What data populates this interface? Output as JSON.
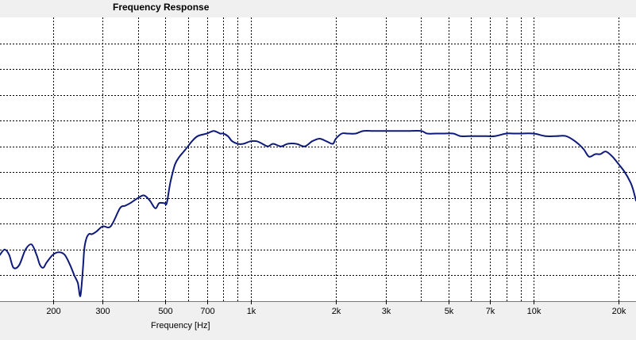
{
  "chart_data": {
    "type": "line",
    "title": "Frequency Response",
    "xlabel": "Frequency [Hz]",
    "ylabel": "",
    "x_scale": "log",
    "xlim": [
      130,
      23000
    ],
    "ylim": [
      0,
      11
    ],
    "grid": true,
    "legend": "none",
    "x_ticks": [
      {
        "value": 200,
        "label": "200"
      },
      {
        "value": 300,
        "label": "300"
      },
      {
        "value": 500,
        "label": "500"
      },
      {
        "value": 700,
        "label": "700"
      },
      {
        "value": 1000,
        "label": "1k"
      },
      {
        "value": 2000,
        "label": "2k"
      },
      {
        "value": 3000,
        "label": "3k"
      },
      {
        "value": 5000,
        "label": "5k"
      },
      {
        "value": 7000,
        "label": "7k"
      },
      {
        "value": 10000,
        "label": "10k"
      },
      {
        "value": 20000,
        "label": "20k"
      }
    ],
    "x_gridlines": [
      200,
      300,
      400,
      500,
      600,
      700,
      800,
      900,
      1000,
      2000,
      3000,
      4000,
      5000,
      6000,
      7000,
      8000,
      9000,
      10000,
      20000
    ],
    "y_gridlines": [
      1,
      2,
      3,
      4,
      5,
      6,
      7,
      8,
      9,
      10
    ],
    "series": [
      {
        "color": "#0d1a7a",
        "x": [
          130,
          135,
          140,
          145,
          152,
          160,
          168,
          175,
          180,
          185,
          190,
          200,
          210,
          220,
          230,
          238,
          245,
          250,
          255,
          258,
          262,
          268,
          275,
          285,
          300,
          320,
          345,
          360,
          375,
          400,
          420,
          440,
          460,
          475,
          495,
          505,
          520,
          540,
          560,
          580,
          600,
          620,
          650,
          700,
          740,
          780,
          800,
          830,
          860,
          900,
          940,
          1000,
          1050,
          1100,
          1150,
          1200,
          1280,
          1350,
          1450,
          1550,
          1650,
          1750,
          1850,
          1950,
          2000,
          2100,
          2200,
          2350,
          2500,
          2700,
          2900,
          3100,
          3300,
          3600,
          4000,
          4200,
          4500,
          4800,
          5200,
          5500,
          5900,
          6300,
          6800,
          7300,
          8000,
          8500,
          9000,
          10000,
          11000,
          12000,
          13000,
          14000,
          15000,
          15700,
          16500,
          17200,
          18000,
          19000,
          20000,
          21000,
          22000,
          22500,
          23000
        ],
        "y": [
          1.8,
          2.0,
          1.8,
          1.3,
          1.4,
          2.0,
          2.2,
          1.8,
          1.4,
          1.3,
          1.5,
          1.8,
          1.9,
          1.8,
          1.4,
          1.0,
          0.7,
          0.2,
          1.2,
          2.0,
          2.4,
          2.6,
          2.6,
          2.7,
          2.9,
          2.9,
          3.6,
          3.7,
          3.8,
          4.0,
          4.1,
          3.9,
          3.6,
          3.8,
          3.8,
          3.8,
          4.6,
          5.3,
          5.6,
          5.8,
          6.0,
          6.2,
          6.4,
          6.5,
          6.6,
          6.5,
          6.5,
          6.4,
          6.2,
          6.1,
          6.1,
          6.2,
          6.2,
          6.1,
          6.0,
          6.1,
          6.0,
          6.1,
          6.1,
          6.0,
          6.2,
          6.3,
          6.2,
          6.1,
          6.3,
          6.5,
          6.5,
          6.5,
          6.6,
          6.6,
          6.6,
          6.6,
          6.6,
          6.6,
          6.6,
          6.5,
          6.5,
          6.5,
          6.5,
          6.4,
          6.4,
          6.4,
          6.4,
          6.4,
          6.5,
          6.5,
          6.5,
          6.5,
          6.4,
          6.4,
          6.4,
          6.2,
          5.9,
          5.6,
          5.7,
          5.7,
          5.8,
          5.6,
          5.3,
          5.0,
          4.6,
          4.3,
          3.9
        ]
      }
    ]
  }
}
